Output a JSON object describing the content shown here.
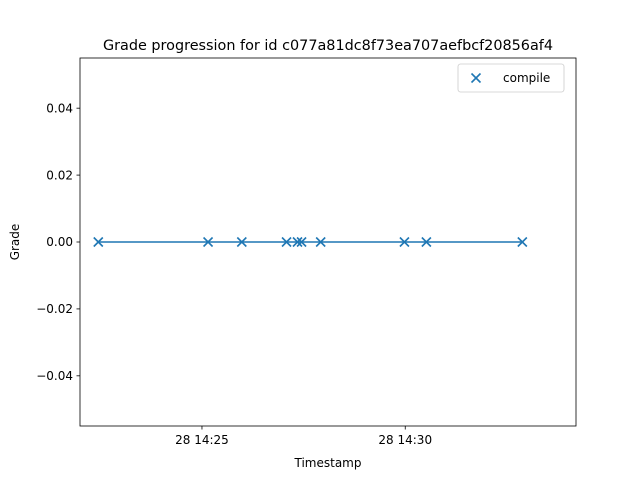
{
  "chart_data": {
    "type": "scatter",
    "title": "Grade progression for id c077a81dc8f73ea707aefbcf20856af4",
    "xlabel": "Timestamp",
    "ylabel": "Grade",
    "x_unit": "minutes after 14:00 on the 28th",
    "xlim": [
      22.0,
      34.2
    ],
    "ylim": [
      -0.055,
      0.055
    ],
    "x_ticks": [
      {
        "value": 25,
        "label": "28 14:25"
      },
      {
        "value": 30,
        "label": "28 14:30"
      }
    ],
    "y_ticks": [
      {
        "value": 0.04,
        "label": "0.04"
      },
      {
        "value": 0.02,
        "label": "0.02"
      },
      {
        "value": 0.0,
        "label": "0.00"
      },
      {
        "value": -0.02,
        "label": "−0.02"
      },
      {
        "value": -0.04,
        "label": "−0.04"
      }
    ],
    "grid": false,
    "legend": "top-right",
    "series": [
      {
        "name": "compile",
        "marker": "x",
        "color": "#1f77b4",
        "line": true,
        "x": [
          22.45,
          25.15,
          25.98,
          27.08,
          27.35,
          27.45,
          27.92,
          29.98,
          30.52,
          32.88
        ],
        "y": [
          0,
          0,
          0,
          0,
          0,
          0,
          0,
          0,
          0,
          0
        ]
      }
    ]
  }
}
